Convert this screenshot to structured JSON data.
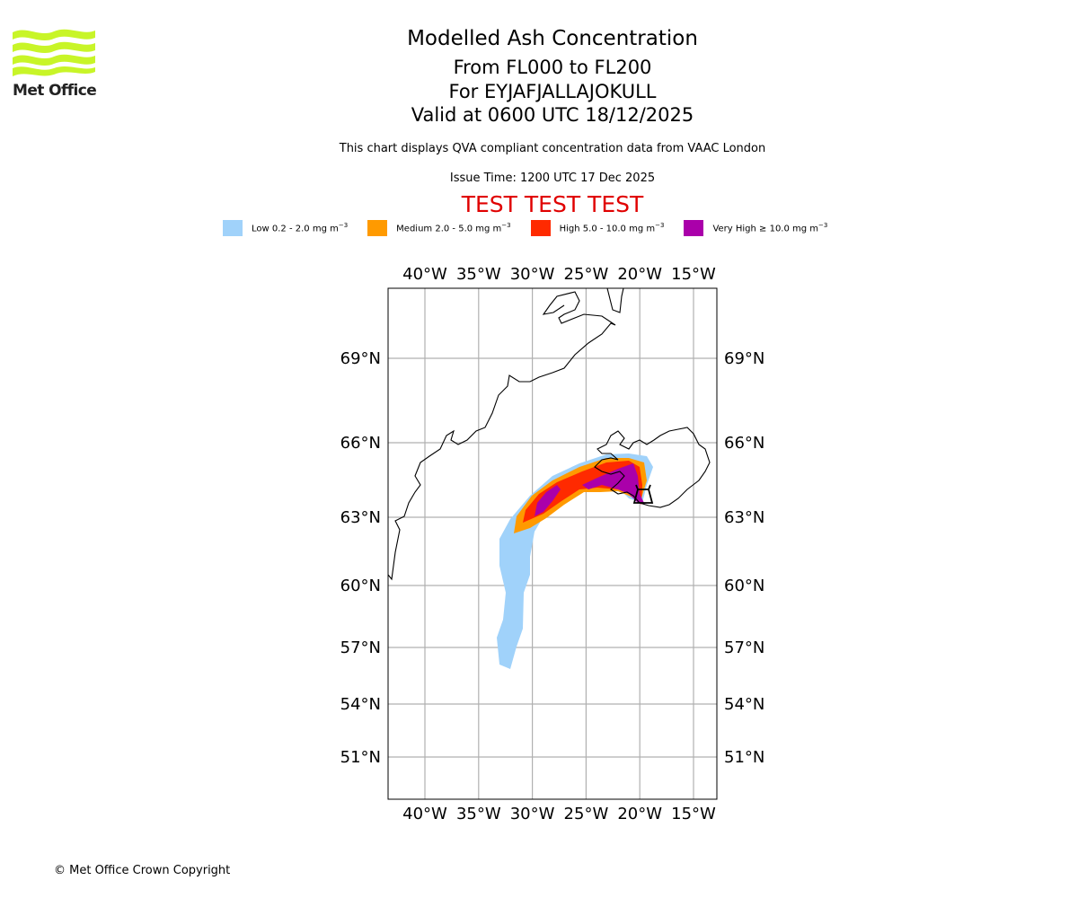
{
  "branding": {
    "logo_text": "Met Office",
    "logo_color": "#c8f528",
    "copyright": "© Met Office Crown Copyright"
  },
  "header": {
    "title": "Modelled Ash Concentration",
    "levels": "From FL000 to FL200",
    "volcano": "For EYJAFJALLAJOKULL",
    "valid": "Valid at 0600 UTC 18/12/2025",
    "subtitle": "This chart displays QVA compliant concentration data from VAAC London",
    "issue_time": "Issue Time: 1200 UTC 17 Dec 2025",
    "test_banner": "TEST TEST TEST",
    "test_color": "#e00000"
  },
  "legend": [
    {
      "label": "Low 0.2 - 2.0 mg m",
      "sup": "−3",
      "color": "#a0d2fa"
    },
    {
      "label": "Medium 2.0 - 5.0 mg m",
      "sup": "−3",
      "color": "#ff9a00"
    },
    {
      "label": "High 5.0 - 10.0 mg m",
      "sup": "−3",
      "color": "#ff2a00"
    },
    {
      "label": "Very High  ≥  10.0 mg m",
      "sup": "−3",
      "color": "#aa00aa"
    }
  ],
  "chart_data": {
    "type": "map",
    "title": "Modelled Ash Concentration",
    "lon_range": [
      -43.5,
      -13.5
    ],
    "lat_range": [
      48.5,
      72
    ],
    "lon_ticks": [
      -40,
      -35,
      -30,
      -25,
      -20,
      -15
    ],
    "lon_tick_labels": [
      "40°W",
      "35°W",
      "30°W",
      "25°W",
      "20°W",
      "15°W"
    ],
    "lat_ticks": [
      69,
      66,
      63,
      60,
      57,
      54,
      51
    ],
    "lat_tick_labels": [
      "69°N",
      "66°N",
      "63°N",
      "60°N",
      "57°N",
      "54°N",
      "51°N"
    ],
    "grid": true,
    "source_volcano": {
      "name": "EYJAFJALLAJOKULL",
      "lat": 63.63,
      "lon": -19.62
    },
    "plume_levels": [
      "Low",
      "Medium",
      "High",
      "Very High"
    ],
    "plume_extent": {
      "low": {
        "lat": [
          56.2,
          65.0
        ],
        "lon": [
          -32.5,
          -18.7
        ]
      },
      "medium": {
        "lat": [
          62.5,
          64.9
        ],
        "lon": [
          -32.0,
          -19.2
        ]
      },
      "high": {
        "lat": [
          62.8,
          64.8
        ],
        "lon": [
          -31.5,
          -19.5
        ]
      },
      "very_high": {
        "lat": [
          63.0,
          64.6
        ],
        "lon": [
          -30.5,
          -19.5
        ]
      }
    }
  }
}
